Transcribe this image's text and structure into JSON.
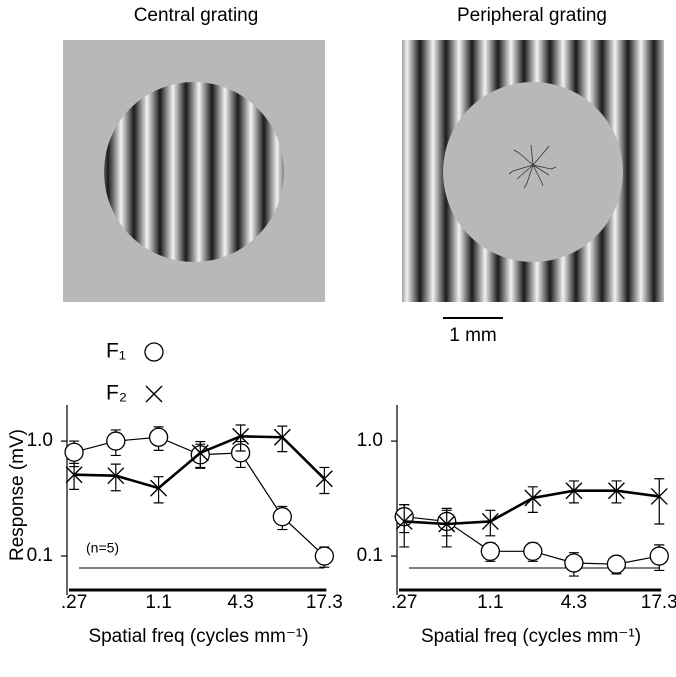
{
  "figure": {
    "left_title": "Central grating",
    "right_title": "Peripheral grating",
    "scale_bar": "1 mm",
    "n_label": "(n=5)"
  },
  "chart_data": [
    {
      "type": "line",
      "xscale": "log",
      "yscale": "log",
      "x_label": "Spatial freq (cycles mm⁻¹)",
      "y_label": "Response (mV)",
      "x": [
        0.27,
        0.54,
        1.1,
        2.2,
        4.3,
        8.6,
        17.3
      ],
      "xlim": [
        0.24,
        19
      ],
      "ylim": [
        0.056,
        2.06
      ],
      "xticks": [
        {
          "value": 0.27,
          "label": ".27"
        },
        1.1,
        4.3,
        17.3
      ],
      "yticks": [
        0.1,
        {
          "value": 1,
          "label": "1.0"
        }
      ],
      "series": [
        {
          "name": "F₁",
          "marker": "circle",
          "color": "#000000",
          "values": [
            0.8,
            1.0,
            1.08,
            0.76,
            0.79,
            0.22,
            0.1
          ],
          "errors": [
            0.2,
            0.25,
            0.25,
            0.18,
            0.2,
            0.05,
            0.02
          ]
        },
        {
          "name": "F₂",
          "marker": "x",
          "color": "#000000",
          "values": [
            0.51,
            0.5,
            0.39,
            0.79,
            1.1,
            1.08,
            0.47
          ],
          "errors": [
            0.13,
            0.13,
            0.1,
            0.2,
            0.28,
            0.27,
            0.12
          ]
        }
      ]
    },
    {
      "type": "line",
      "xscale": "log",
      "yscale": "log",
      "x_label": "Spatial freq (cycles mm⁻¹)",
      "x": [
        0.27,
        0.54,
        1.1,
        2.2,
        4.3,
        8.6,
        17.3
      ],
      "xlim": [
        0.24,
        19
      ],
      "ylim": [
        0.056,
        2.06
      ],
      "xticks": [
        {
          "value": 0.27,
          "label": ".27"
        },
        1.1,
        4.3,
        17.3
      ],
      "yticks": [
        0.1,
        {
          "value": 1,
          "label": "1.0"
        }
      ],
      "series": [
        {
          "marker": "circle",
          "color": "#000000",
          "values": [
            0.22,
            0.2,
            0.11,
            0.11,
            0.087,
            0.085,
            0.1
          ],
          "errors": [
            0.06,
            0.05,
            0.02,
            0.02,
            0.02,
            0.015,
            0.025
          ]
        },
        {
          "marker": "x",
          "color": "#000000",
          "values": [
            0.2,
            0.19,
            0.2,
            0.32,
            0.37,
            0.37,
            0.33
          ],
          "errors": [
            0.08,
            0.07,
            0.05,
            0.08,
            0.08,
            0.08,
            0.14
          ]
        }
      ]
    }
  ]
}
